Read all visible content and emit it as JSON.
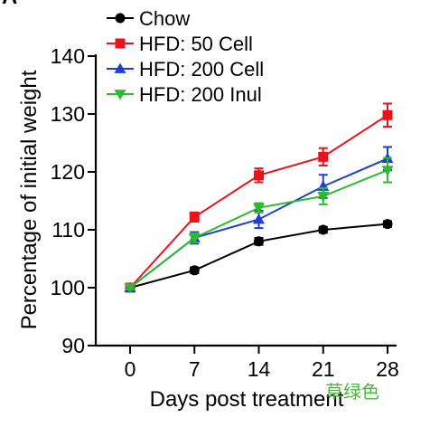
{
  "panel_label": "A",
  "watermark": "草绿色",
  "chart_data": {
    "type": "line",
    "title": "",
    "xlabel": "Days post treatment",
    "ylabel": "Percentage of initial weight",
    "x": [
      0,
      7,
      14,
      21,
      28
    ],
    "x_ticks": [
      "0",
      "7",
      "14",
      "21",
      "28"
    ],
    "xlim": [
      0,
      28
    ],
    "ylim": [
      90,
      140
    ],
    "y_ticks": [
      "90",
      "100",
      "110",
      "120",
      "130",
      "140"
    ],
    "grid": false,
    "legend_position": "top-left",
    "series": [
      {
        "name": "Chow",
        "color": "#000000",
        "marker": "circle",
        "values": [
          100,
          103,
          108,
          110,
          111
        ],
        "errors": [
          0.3,
          0.5,
          0.6,
          0.5,
          0.5
        ]
      },
      {
        "name": "HFD: 50 Cell",
        "color": "#e8141c",
        "marker": "square",
        "values": [
          100,
          112.2,
          119.4,
          122.6,
          129.8
        ],
        "errors": [
          0.3,
          0.8,
          1.2,
          1.5,
          2.0
        ]
      },
      {
        "name": "HFD: 200 Cell",
        "color": "#1f3fd0",
        "marker": "triangle-up",
        "values": [
          100,
          108.6,
          111.8,
          117.5,
          122.3
        ],
        "errors": [
          0.3,
          1.0,
          1.5,
          2.0,
          2.0
        ]
      },
      {
        "name": "HFD: 200 Inul",
        "color": "#2ebb2e",
        "marker": "triangle-down",
        "values": [
          100,
          108.6,
          113.8,
          115.8,
          120.3
        ],
        "errors": [
          0.3,
          0.8,
          0.8,
          1.4,
          2.1
        ]
      }
    ]
  }
}
